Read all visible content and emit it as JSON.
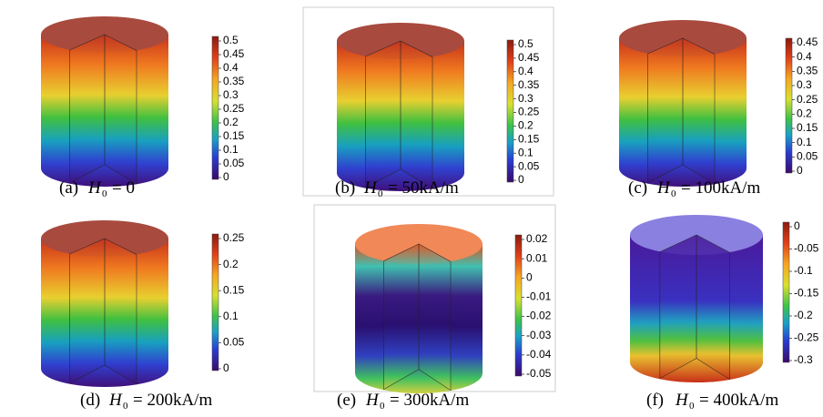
{
  "panels": [
    {
      "label": "(a)",
      "symbol": "H",
      "subscript": "0",
      "value": "= 0",
      "ticks": [
        "0.5",
        "0.45",
        "0.4",
        "0.35",
        "0.3",
        "0.25",
        "0.2",
        "0.15",
        "0.1",
        "0.05",
        "0"
      ]
    },
    {
      "label": "(b)",
      "symbol": "H",
      "subscript": "0",
      "value": "= 50kA/m",
      "ticks": [
        "0.5",
        "0.45",
        "0.4",
        "0.35",
        "0.3",
        "0.25",
        "0.2",
        "0.15",
        "0.1",
        "0.05",
        "0"
      ]
    },
    {
      "label": "(c)",
      "symbol": "H",
      "subscript": "0",
      "value": "= 100kA/m",
      "ticks": [
        "0.45",
        "0.4",
        "0.35",
        "0.3",
        "0.25",
        "0.2",
        "0.15",
        "0.1",
        "0.05",
        "0"
      ]
    },
    {
      "label": "(d)",
      "symbol": "H",
      "subscript": "0",
      "value": "= 200kA/m",
      "ticks": [
        "0.25",
        "0.2",
        "0.15",
        "0.1",
        "0.05",
        "0"
      ]
    },
    {
      "label": "(e)",
      "symbol": "H",
      "subscript": "0",
      "value": "= 300kA/m",
      "ticks": [
        "0.02",
        "0.01",
        "0",
        "-0.01",
        "-0.02",
        "-0.03",
        "-0.04",
        "-0.05"
      ]
    },
    {
      "label": "(f)",
      "symbol": "H",
      "subscript": "0",
      "value": "= 400kA/m",
      "ticks": [
        "0",
        "-0.05",
        "-0.1",
        "-0.15",
        "-0.2",
        "-0.25",
        "-0.3"
      ]
    }
  ]
}
